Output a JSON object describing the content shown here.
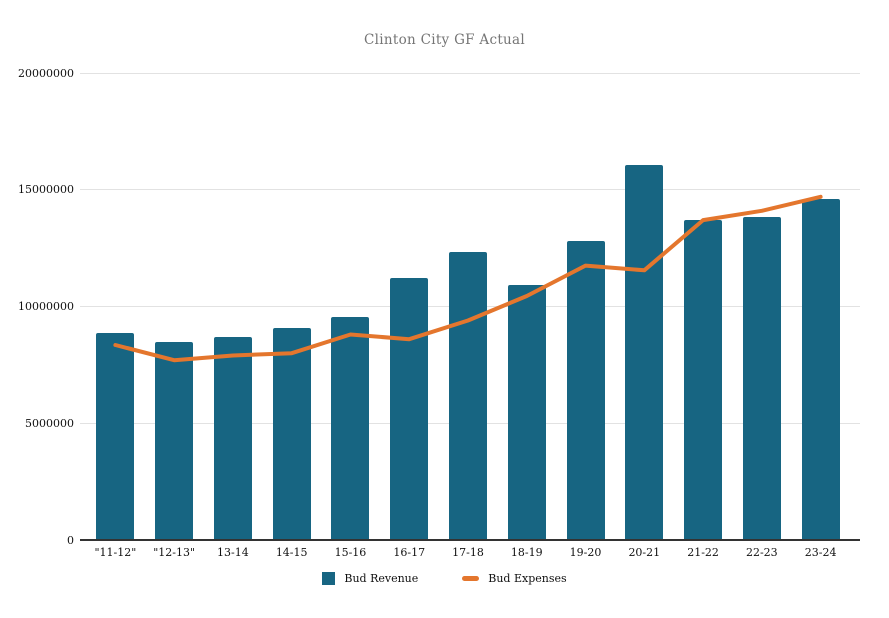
{
  "chart_data": {
    "type": "bar",
    "title": "Clinton City GF Actual",
    "categories": [
      "\"11-12\"",
      "\"12-13\"",
      "13-14",
      "14-15",
      "15-16",
      "16-17",
      "17-18",
      "18-19",
      "19-20",
      "20-21",
      "21-22",
      "22-23",
      "23-24"
    ],
    "series": [
      {
        "name": "Bud Revenue",
        "type": "bar",
        "color": "#176582",
        "values": [
          8850000,
          8500000,
          8700000,
          9100000,
          9550000,
          11200000,
          12350000,
          10900000,
          12800000,
          16050000,
          13700000,
          13850000,
          14600000
        ]
      },
      {
        "name": "Bud Expenses",
        "type": "line",
        "color": "#e4762d",
        "values": [
          8350000,
          7700000,
          7900000,
          8000000,
          8800000,
          8600000,
          9400000,
          10450000,
          11750000,
          11550000,
          13700000,
          14100000,
          14700000
        ]
      }
    ],
    "xlabel": "",
    "ylabel": "",
    "ylim": [
      0,
      20000000
    ],
    "ytick_interval": 5000000,
    "ytick_labels": [
      "20000000",
      "15000000",
      "10000000",
      "5000000",
      "0"
    ],
    "grid": true,
    "legend_position": "bottom"
  },
  "colors": {
    "background": "#ffffff",
    "title_text": "#757575",
    "axis_text": "#111111",
    "gridline": "#e2e2e2",
    "axis_line": "#333333",
    "bar_fill": "#176582",
    "line_stroke": "#e4762d"
  }
}
